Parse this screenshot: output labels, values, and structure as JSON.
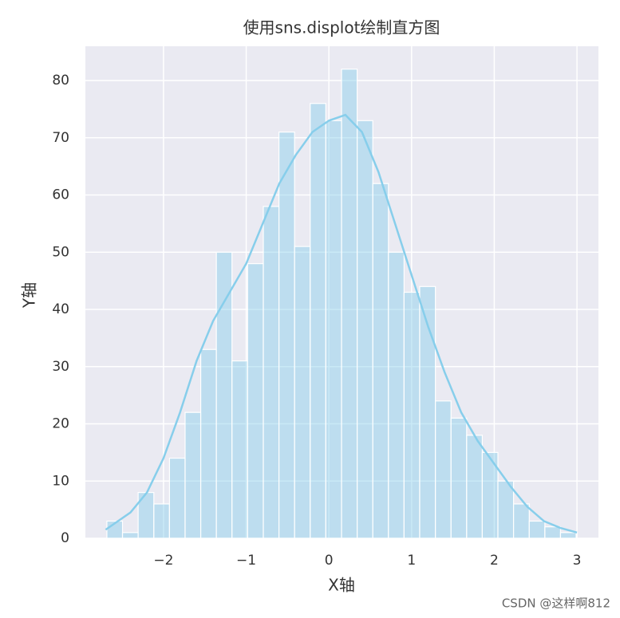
{
  "chart_data": {
    "type": "histogram",
    "title": "使用sns.displot绘制直方图",
    "x_label": "X轴",
    "y_label": "Y轴",
    "bins": [
      -2.685,
      -2.496,
      -2.307,
      -2.117,
      -1.928,
      -1.739,
      -1.55,
      -1.361,
      -1.172,
      -0.983,
      -0.793,
      -0.604,
      -0.415,
      -0.226,
      -0.037,
      0.153,
      0.342,
      0.531,
      0.72,
      0.909,
      1.098,
      1.288,
      1.477,
      1.666,
      1.855,
      2.044,
      2.233,
      2.423,
      2.612,
      2.801,
      2.99
    ],
    "values": [
      3,
      1,
      8,
      6,
      14,
      22,
      33,
      50,
      31,
      48,
      58,
      71,
      51,
      76,
      73,
      82,
      73,
      62,
      50,
      43,
      44,
      24,
      21,
      18,
      15,
      10,
      6,
      3,
      2,
      1
    ],
    "color": "#87ceeb",
    "kde": {
      "x": [
        -2.7,
        -2.4,
        -2.2,
        -2.0,
        -1.8,
        -1.6,
        -1.4,
        -1.2,
        -1.0,
        -0.8,
        -0.6,
        -0.4,
        -0.2,
        0,
        0.2,
        0.4,
        0.6,
        0.8,
        1.0,
        1.2,
        1.4,
        1.6,
        1.8,
        2.0,
        2.2,
        2.4,
        2.6,
        2.8,
        3.0
      ],
      "y": [
        1.5,
        4.5,
        8,
        14,
        22,
        31,
        38,
        43,
        48,
        55,
        62,
        67,
        71,
        73,
        74,
        71,
        64,
        55,
        46,
        37,
        29,
        22,
        17,
        13,
        9,
        5.5,
        3,
        1.8,
        1
      ]
    },
    "xlim": [
      -2.945,
      3.26
    ],
    "ylim": [
      0,
      86
    ],
    "xticks": [
      {
        "value": -2,
        "label": "−2"
      },
      {
        "value": -1,
        "label": "−1"
      },
      0,
      1,
      2,
      3
    ],
    "yticks": [
      0,
      10,
      20,
      30,
      40,
      50,
      60,
      70,
      80
    ],
    "grid": true,
    "watermark": "CSDN @这样啊812"
  }
}
